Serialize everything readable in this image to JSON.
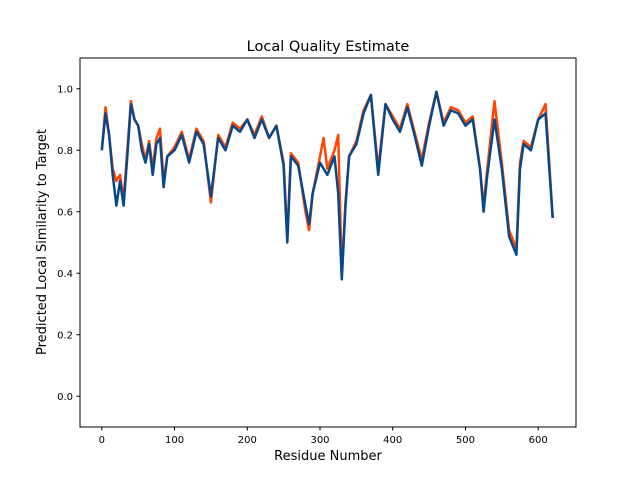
{
  "chart_data": {
    "type": "line",
    "title": "Local Quality Estimate",
    "xlabel": "Residue Number",
    "ylabel": "Predicted Local Similarity to Target",
    "xlim": [
      -30,
      652
    ],
    "ylim": [
      -0.1,
      1.1
    ],
    "xticks": [
      0,
      100,
      200,
      300,
      400,
      500,
      600
    ],
    "xtick_labels": [
      "0",
      "100",
      "200",
      "300",
      "400",
      "500",
      "600"
    ],
    "yticks": [
      0.0,
      0.2,
      0.4,
      0.6,
      0.8,
      1.0
    ],
    "ytick_labels": [
      "0.0",
      "0.2",
      "0.4",
      "0.6",
      "0.8",
      "1.0"
    ],
    "grid": false,
    "x": [
      0,
      5,
      10,
      15,
      20,
      25,
      30,
      35,
      40,
      45,
      50,
      55,
      60,
      65,
      70,
      75,
      80,
      85,
      90,
      100,
      110,
      120,
      130,
      140,
      150,
      160,
      170,
      180,
      190,
      200,
      210,
      220,
      230,
      240,
      250,
      255,
      260,
      270,
      280,
      285,
      290,
      300,
      305,
      310,
      320,
      325,
      330,
      335,
      340,
      350,
      360,
      370,
      380,
      390,
      400,
      410,
      420,
      430,
      440,
      450,
      460,
      470,
      480,
      490,
      500,
      510,
      520,
      525,
      530,
      540,
      550,
      560,
      570,
      575,
      580,
      590,
      600,
      610,
      620
    ],
    "series": [
      {
        "name": "orange",
        "color": "#ff4500",
        "values": [
          0.8,
          0.94,
          0.85,
          0.74,
          0.7,
          0.72,
          0.64,
          0.8,
          0.96,
          0.9,
          0.88,
          0.82,
          0.77,
          0.83,
          0.74,
          0.84,
          0.87,
          0.7,
          0.78,
          0.81,
          0.86,
          0.77,
          0.87,
          0.83,
          0.63,
          0.85,
          0.81,
          0.89,
          0.87,
          0.9,
          0.85,
          0.91,
          0.84,
          0.88,
          0.76,
          0.52,
          0.79,
          0.76,
          0.6,
          0.54,
          0.66,
          0.78,
          0.84,
          0.74,
          0.8,
          0.85,
          0.4,
          0.63,
          0.78,
          0.83,
          0.93,
          0.98,
          0.74,
          0.95,
          0.91,
          0.87,
          0.95,
          0.86,
          0.77,
          0.89,
          0.99,
          0.89,
          0.94,
          0.93,
          0.89,
          0.91,
          0.74,
          0.62,
          0.74,
          0.96,
          0.76,
          0.54,
          0.48,
          0.76,
          0.83,
          0.81,
          0.9,
          0.95,
          0.58
        ]
      },
      {
        "name": "blue",
        "color": "#08488a",
        "values": [
          0.8,
          0.92,
          0.85,
          0.72,
          0.62,
          0.7,
          0.62,
          0.78,
          0.95,
          0.9,
          0.88,
          0.8,
          0.76,
          0.82,
          0.72,
          0.82,
          0.84,
          0.68,
          0.78,
          0.8,
          0.85,
          0.76,
          0.86,
          0.82,
          0.65,
          0.84,
          0.8,
          0.88,
          0.86,
          0.9,
          0.84,
          0.9,
          0.84,
          0.88,
          0.75,
          0.5,
          0.78,
          0.75,
          0.62,
          0.56,
          0.66,
          0.76,
          0.74,
          0.72,
          0.78,
          0.66,
          0.38,
          0.62,
          0.78,
          0.82,
          0.92,
          0.98,
          0.72,
          0.95,
          0.9,
          0.86,
          0.94,
          0.85,
          0.75,
          0.88,
          0.99,
          0.88,
          0.93,
          0.92,
          0.88,
          0.9,
          0.74,
          0.6,
          0.72,
          0.9,
          0.74,
          0.52,
          0.46,
          0.74,
          0.82,
          0.8,
          0.9,
          0.92,
          0.58
        ]
      }
    ]
  }
}
